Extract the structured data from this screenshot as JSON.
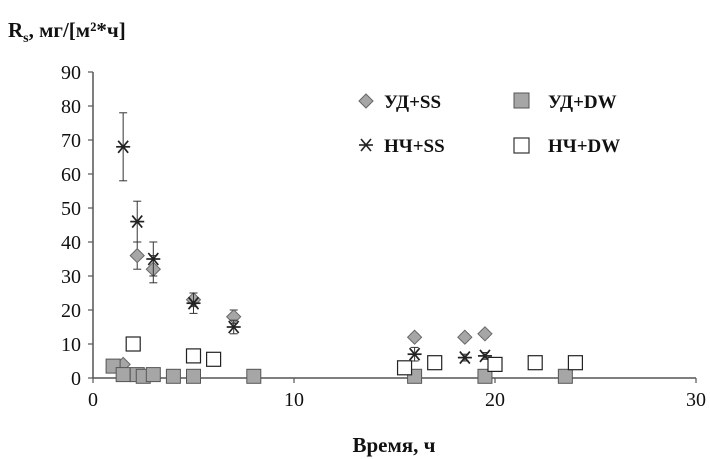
{
  "chart_data": {
    "type": "scatter",
    "title": "",
    "ylabel": "R",
    "ylabel_sub": "s",
    "ylabel_unit": ", мг/[м²*ч]",
    "xlabel": "Время, ч",
    "xlim": [
      0,
      30
    ],
    "ylim": [
      0,
      90
    ],
    "xticks": [
      0,
      10,
      20,
      30
    ],
    "yticks": [
      0,
      10,
      20,
      30,
      40,
      50,
      60,
      70,
      80,
      90
    ],
    "grid": false,
    "legend_position": "top-right",
    "series": [
      {
        "name": "УД+SS",
        "marker": "diamond",
        "color": "#a6a6a6",
        "points": [
          {
            "x": 1.5,
            "y": 4,
            "err": 0
          },
          {
            "x": 2.2,
            "y": 36,
            "err": 4
          },
          {
            "x": 3.0,
            "y": 32,
            "err": 4
          },
          {
            "x": 5.0,
            "y": 23,
            "err": 2
          },
          {
            "x": 7.0,
            "y": 18,
            "err": 2
          },
          {
            "x": 16.0,
            "y": 12,
            "err": 1
          },
          {
            "x": 18.5,
            "y": 12,
            "err": 1
          },
          {
            "x": 19.5,
            "y": 13,
            "err": 1
          }
        ]
      },
      {
        "name": "УД+DW",
        "marker": "square-filled",
        "color": "#a6a6a6",
        "points": [
          {
            "x": 1.0,
            "y": 3.5,
            "err": 0
          },
          {
            "x": 1.5,
            "y": 1,
            "err": 0
          },
          {
            "x": 2.2,
            "y": 1,
            "err": 0
          },
          {
            "x": 2.5,
            "y": 0.5,
            "err": 0
          },
          {
            "x": 3.0,
            "y": 1,
            "err": 0
          },
          {
            "x": 4.0,
            "y": 0.5,
            "err": 0
          },
          {
            "x": 5.0,
            "y": 0.5,
            "err": 0
          },
          {
            "x": 8.0,
            "y": 0.5,
            "err": 0
          },
          {
            "x": 16.0,
            "y": 0.5,
            "err": 0
          },
          {
            "x": 19.5,
            "y": 0.5,
            "err": 0
          },
          {
            "x": 23.5,
            "y": 0.5,
            "err": 0
          }
        ]
      },
      {
        "name": "НЧ+SS",
        "marker": "star",
        "color": "#222222",
        "points": [
          {
            "x": 1.5,
            "y": 68,
            "err": 10
          },
          {
            "x": 2.2,
            "y": 46,
            "err": 6
          },
          {
            "x": 3.0,
            "y": 35,
            "err": 5
          },
          {
            "x": 5.0,
            "y": 22,
            "err": 3
          },
          {
            "x": 7.0,
            "y": 15,
            "err": 2
          },
          {
            "x": 16.0,
            "y": 7,
            "err": 2
          },
          {
            "x": 18.5,
            "y": 6,
            "err": 1
          },
          {
            "x": 19.5,
            "y": 6.5,
            "err": 1
          }
        ]
      },
      {
        "name": "НЧ+DW",
        "marker": "square-open",
        "color": "#222222",
        "points": [
          {
            "x": 2.0,
            "y": 10,
            "err": 1
          },
          {
            "x": 5.0,
            "y": 6.5,
            "err": 1
          },
          {
            "x": 6.0,
            "y": 5.5,
            "err": 1
          },
          {
            "x": 15.5,
            "y": 3,
            "err": 1
          },
          {
            "x": 17.0,
            "y": 4.5,
            "err": 1
          },
          {
            "x": 20.0,
            "y": 4,
            "err": 1
          },
          {
            "x": 22.0,
            "y": 4.5,
            "err": 1
          },
          {
            "x": 24.0,
            "y": 4.5,
            "err": 1
          }
        ]
      }
    ]
  }
}
